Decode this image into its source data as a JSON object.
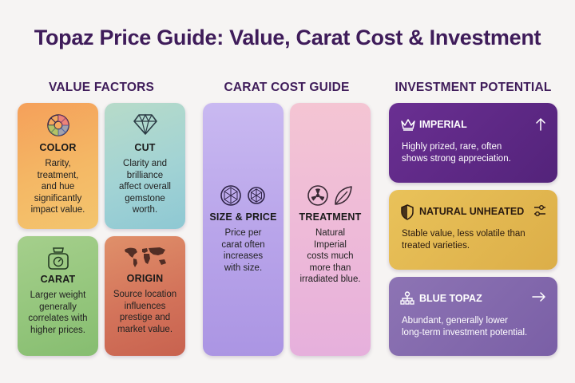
{
  "title": "Topaz Price Guide: Value, Carat Cost & Investment",
  "sections": {
    "value": "VALUE FACTORS",
    "carat": "CARAT COST GUIDE",
    "investment": "INVESTMENT POTENTIAL"
  },
  "value_factors": [
    {
      "label": "COLOR",
      "desc": [
        "Rarity,",
        "treatment,",
        "and hue",
        "significantly",
        "impact value."
      ],
      "icon": "color-wheel-icon"
    },
    {
      "label": "CUT",
      "desc": [
        "Clarity and",
        "brilliance",
        "affect overall",
        "gemstone",
        "worth."
      ],
      "icon": "diamond-icon"
    },
    {
      "label": "CARAT",
      "desc": [
        "Larger weight",
        "generally",
        "correlates with",
        "higher prices."
      ],
      "icon": "scale-icon"
    },
    {
      "label": "ORIGIN",
      "desc": [
        "Source location",
        "influences",
        "prestige and",
        "market value."
      ],
      "icon": "world-map-icon"
    }
  ],
  "carat_guide": [
    {
      "label": "SIZE & PRICE",
      "desc": [
        "Price per",
        "carat often",
        "increases",
        "with size."
      ],
      "icon": "gem-circles-icon"
    },
    {
      "label": "TREATMENT",
      "desc": [
        "Natural",
        "Imperial",
        "costs much",
        "more than",
        "irradiated blue."
      ],
      "icon": "radiation-leaf-icon"
    }
  ],
  "investment": [
    {
      "label": "IMPERIAL",
      "desc": [
        "Highly prized, rare, often",
        "shows strong appreciation."
      ],
      "icon": "crown-icon",
      "action_icon": "arrow-up-icon"
    },
    {
      "label": "NATURAL UNHEATED",
      "desc": [
        "Stable value, less volatile than",
        "treated varieties."
      ],
      "icon": "shield-icon",
      "action_icon": "sliders-icon"
    },
    {
      "label": "BLUE TOPAZ",
      "desc": [
        "Abundant, generally lower",
        "long-term investment potential."
      ],
      "icon": "hierarchy-icon",
      "action_icon": "arrow-right-icon"
    }
  ],
  "colors": {
    "title": "#3f1c5a",
    "imperial": "#5e2987",
    "natural_unheated": "#e2b850",
    "blue_topaz": "#846aad"
  }
}
